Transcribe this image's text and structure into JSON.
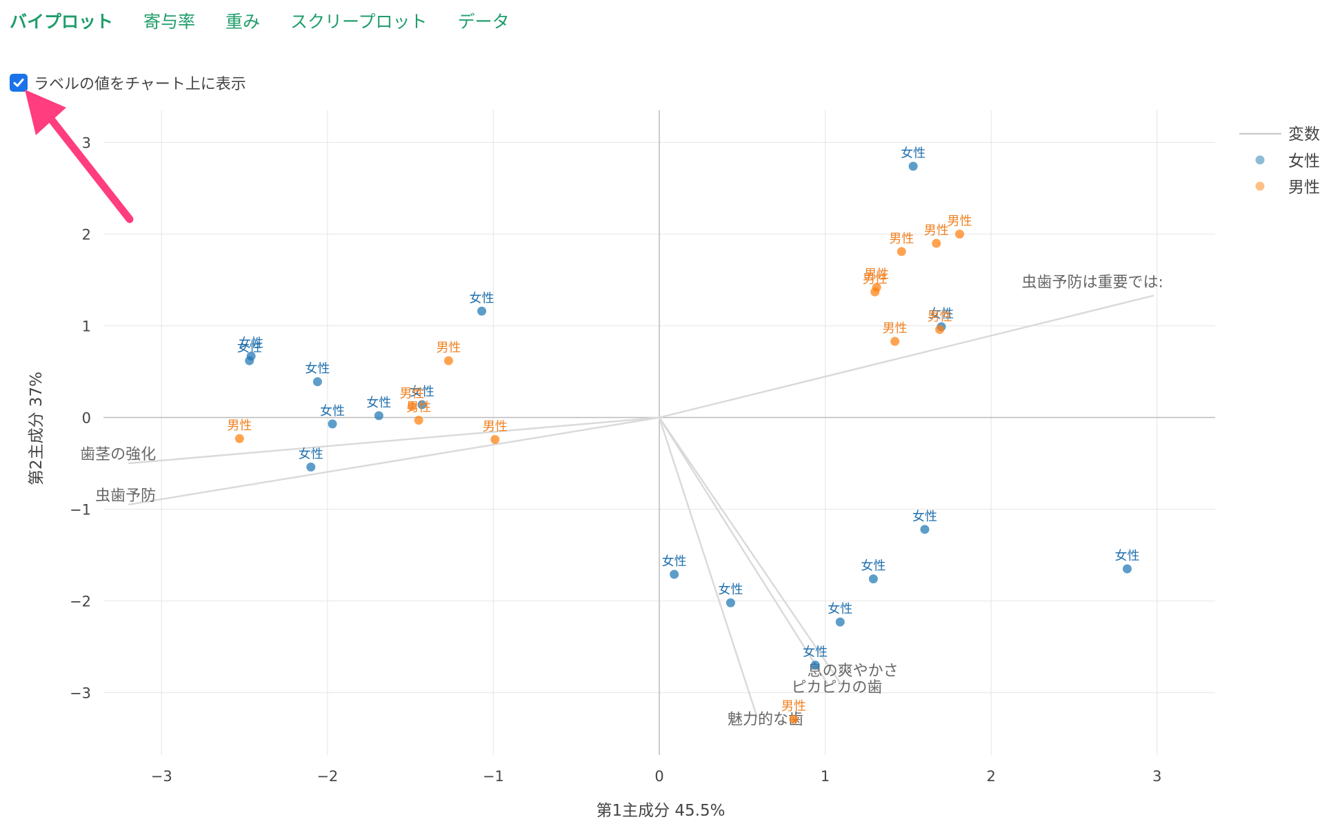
{
  "tabs": [
    {
      "label": "バイプロット",
      "active": true
    },
    {
      "label": "寄与率",
      "active": false
    },
    {
      "label": "重み",
      "active": false
    },
    {
      "label": "スクリープロット",
      "active": false
    },
    {
      "label": "データ",
      "active": false
    }
  ],
  "checkbox": {
    "label": "ラベルの値をチャート上に表示",
    "checked": true
  },
  "colors": {
    "accent": "#1f9d6b",
    "female": "#1f77b4",
    "male": "#ff7f0e",
    "arrow": "#ff3d7f",
    "checkbox": "#1a73e8"
  },
  "chart_data": {
    "type": "scatter",
    "xlabel": "第1主成分 45.5%",
    "ylabel": "第2主成分 37%",
    "xlim": [
      -3.35,
      3.35
    ],
    "ylim": [
      -3.68,
      3.35
    ],
    "xticks": [
      -3,
      -2,
      -1,
      0,
      1,
      2,
      3
    ],
    "yticks": [
      -3,
      -2,
      -1,
      0,
      1,
      2,
      3
    ],
    "xtick_labels": [
      "−3",
      "−2",
      "−1",
      "0",
      "1",
      "2",
      "3"
    ],
    "ytick_labels": [
      "−3",
      "−2",
      "−1",
      "0",
      "1",
      "2",
      "3"
    ],
    "grid": true,
    "legend": {
      "title": "変数",
      "placement": "top-right"
    },
    "series": [
      {
        "name": "女性",
        "color": "#1f77b4",
        "points": [
          [
            1.53,
            2.74
          ],
          [
            -1.07,
            1.16
          ],
          [
            1.7,
            0.99
          ],
          [
            -2.46,
            0.67
          ],
          [
            -2.47,
            0.62
          ],
          [
            -2.06,
            0.39
          ],
          [
            -1.43,
            0.14
          ],
          [
            -1.69,
            0.02
          ],
          [
            -1.97,
            -0.07
          ],
          [
            -2.1,
            -0.54
          ],
          [
            1.6,
            -1.22
          ],
          [
            2.82,
            -1.65
          ],
          [
            1.29,
            -1.76
          ],
          [
            0.09,
            -1.71
          ],
          [
            0.43,
            -2.02
          ],
          [
            1.09,
            -2.23
          ],
          [
            0.94,
            -2.7
          ]
        ]
      },
      {
        "name": "男性",
        "color": "#ff7f0e",
        "points": [
          [
            1.81,
            2.0
          ],
          [
            1.67,
            1.9
          ],
          [
            1.46,
            1.81
          ],
          [
            1.31,
            1.42
          ],
          [
            1.3,
            1.37
          ],
          [
            1.69,
            0.96
          ],
          [
            1.42,
            0.83
          ],
          [
            -1.27,
            0.62
          ],
          [
            -1.49,
            0.12
          ],
          [
            -1.45,
            -0.03
          ],
          [
            -2.53,
            -0.23
          ],
          [
            -0.99,
            -0.24
          ],
          [
            0.81,
            -3.29
          ]
        ]
      }
    ],
    "point_label_female": "女性",
    "point_label_male": "男性",
    "vectors": [
      {
        "label": "虫歯予防は重要では:",
        "end": [
          2.98,
          1.33
        ],
        "label_pos": "top-left"
      },
      {
        "label": "歯茎の強化",
        "end": [
          -3.2,
          -0.5
        ],
        "label_pos": "left"
      },
      {
        "label": "虫歯予防",
        "end": [
          -3.2,
          -0.95
        ],
        "label_pos": "left"
      },
      {
        "label": "ピカピカの歯",
        "end": [
          1.02,
          -2.92
        ],
        "label_pos": "below"
      },
      {
        "label": "息の爽やかさ",
        "end": [
          1.1,
          -2.92
        ],
        "label_pos": "right"
      },
      {
        "label": "魅力的な歯",
        "end": [
          0.59,
          -3.27
        ],
        "label_pos": "below"
      }
    ]
  }
}
